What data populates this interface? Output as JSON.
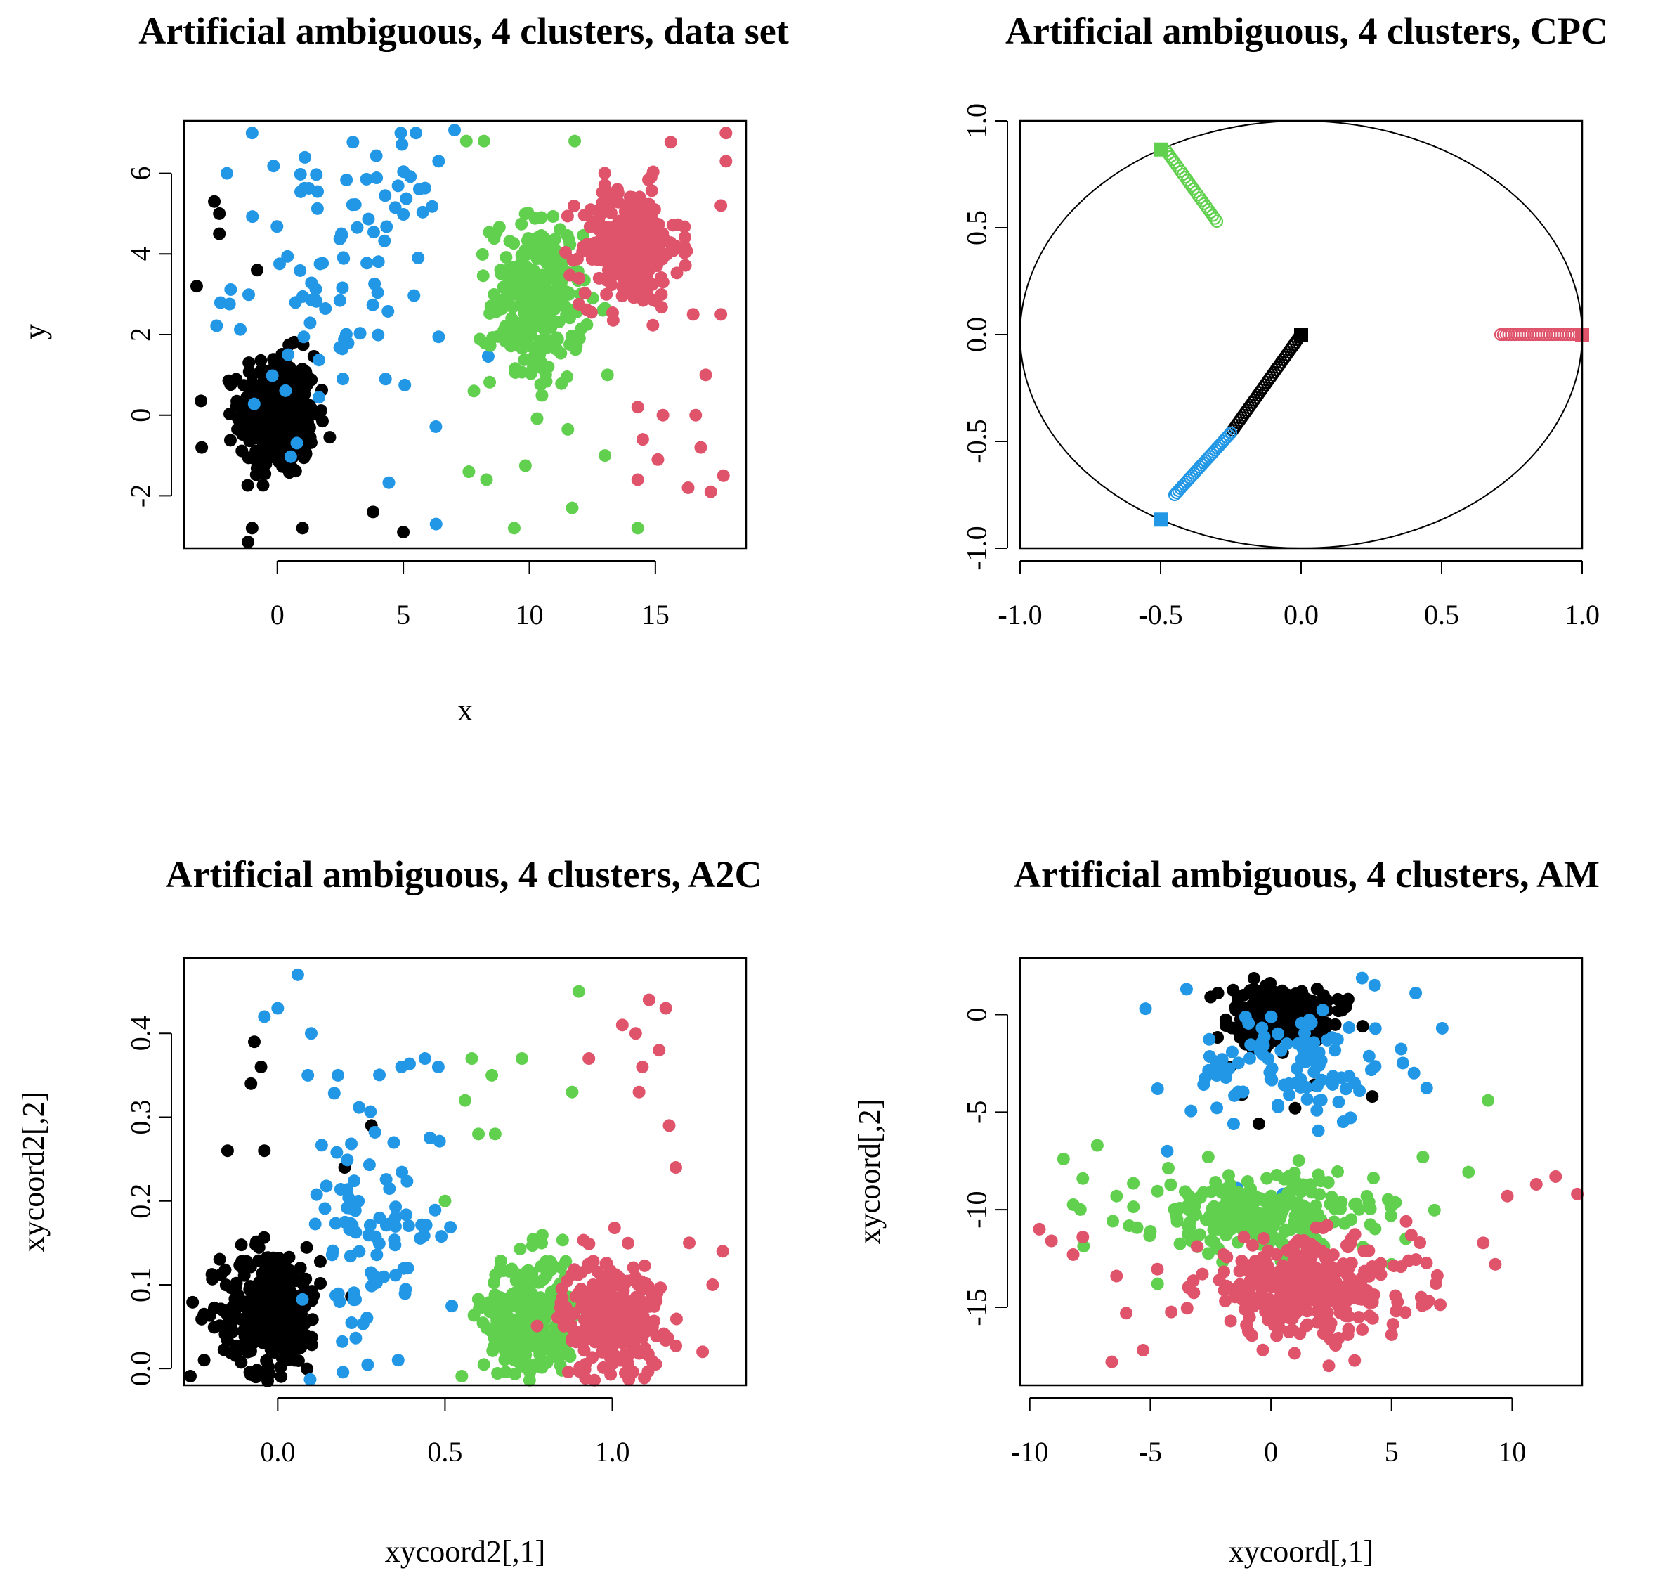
{
  "colors": {
    "black": "#000000",
    "red": "#DF536B",
    "green": "#61D04F",
    "blue": "#2297E6"
  },
  "chart_data": [
    {
      "type": "scatter",
      "title": "Artificial ambiguous, 4 clusters, data set",
      "xlabel": "x",
      "ylabel": "y",
      "xlim": [
        -3.7,
        18.6
      ],
      "ylim": [
        -3.3,
        7.3
      ],
      "xticks": [
        0,
        5,
        10,
        15
      ],
      "xtick_labels": [
        "0",
        "5",
        "10",
        "15"
      ],
      "yticks": [
        -2,
        0,
        2,
        4,
        6
      ],
      "ytick_labels": [
        "-2",
        "0",
        "2",
        "4",
        "6"
      ],
      "grid": false,
      "legend": "none",
      "series": [
        {
          "name": "black",
          "color": "black",
          "n": 360,
          "center": [
            0,
            0
          ],
          "spread": [
            1.0,
            1.0
          ],
          "extra_points": [
            [
              -3.2,
              3.2
            ],
            [
              -2.5,
              5.3
            ],
            [
              -2.3,
              4.5
            ],
            [
              -2.3,
              5.0
            ],
            [
              -0.8,
              3.6
            ],
            [
              -3.0,
              -0.8
            ],
            [
              -1.0,
              -2.8
            ],
            [
              1.0,
              -2.8
            ],
            [
              3.8,
              -2.4
            ],
            [
              5.0,
              -2.9
            ]
          ]
        },
        {
          "name": "blue",
          "color": "blue",
          "n": 95,
          "center": [
            2.5,
            3.5
          ],
          "spread": [
            2.8,
            2.4
          ],
          "extra_points": [
            [
              -1.0,
              7.0
            ],
            [
              4.9,
              7.0
            ],
            [
              5.5,
              7.0
            ],
            [
              6.4,
              6.3
            ],
            [
              -2.0,
              6.0
            ],
            [
              6.3,
              -2.7
            ],
            [
              2.6,
              0.9
            ]
          ]
        },
        {
          "name": "green",
          "color": "green",
          "n": 260,
          "center": [
            10.3,
            2.8
          ],
          "spread": [
            1.2,
            1.4
          ],
          "extra_points": [
            [
              7.5,
              6.8
            ],
            [
              8.2,
              6.8
            ],
            [
              11.8,
              6.8
            ],
            [
              9.4,
              -2.8
            ],
            [
              11.7,
              -2.3
            ],
            [
              14.3,
              -2.8
            ],
            [
              8.3,
              -1.6
            ],
            [
              7.6,
              -1.4
            ],
            [
              13.0,
              -1.0
            ],
            [
              13.1,
              1.0
            ],
            [
              7.8,
              0.6
            ]
          ]
        },
        {
          "name": "red",
          "color": "red",
          "n": 260,
          "center": [
            14.0,
            4.2
          ],
          "spread": [
            1.3,
            1.0
          ],
          "extra_points": [
            [
              17.8,
              7.0
            ],
            [
              17.8,
              6.3
            ],
            [
              17.6,
              5.2
            ],
            [
              17.6,
              2.5
            ],
            [
              16.5,
              2.5
            ],
            [
              17.0,
              1.0
            ],
            [
              16.6,
              0.0
            ],
            [
              14.3,
              0.2
            ],
            [
              14.5,
              -0.6
            ],
            [
              15.1,
              -1.1
            ],
            [
              14.3,
              -1.6
            ],
            [
              16.3,
              -1.8
            ],
            [
              17.2,
              -1.9
            ],
            [
              17.7,
              -1.5
            ],
            [
              16.8,
              -0.8
            ],
            [
              15.3,
              0.0
            ]
          ]
        }
      ]
    },
    {
      "type": "scatter",
      "title": "Artificial ambiguous, 4 clusters, CPC",
      "xlabel": "",
      "ylabel": "",
      "xlim": [
        -1.0,
        1.0
      ],
      "ylim": [
        -1.0,
        1.0
      ],
      "xticks": [
        -1.0,
        -0.5,
        0.0,
        0.5,
        1.0
      ],
      "xtick_labels": [
        "-1.0",
        "-0.5",
        "0.0",
        "0.5",
        "1.0"
      ],
      "yticks": [
        -1.0,
        -0.5,
        0.0,
        0.5,
        1.0
      ],
      "ytick_labels": [
        "-1.0",
        "-0.5",
        "0.0",
        "0.5",
        "1.0"
      ],
      "grid": false,
      "legend": "none",
      "unit_circle": true,
      "series": [
        {
          "name": "black",
          "color": "black",
          "marker": "open-circle",
          "n": 40,
          "segment_from": [
            0.0,
            0.0
          ],
          "segment_to": [
            -0.25,
            -0.46
          ],
          "anchor": [
            0.0,
            0.0
          ]
        },
        {
          "name": "blue",
          "color": "blue",
          "marker": "open-circle",
          "n": 30,
          "segment_from": [
            -0.25,
            -0.46
          ],
          "segment_to": [
            -0.45,
            -0.75
          ],
          "anchor": [
            -0.5,
            -0.866
          ]
        },
        {
          "name": "green",
          "color": "green",
          "marker": "open-circle",
          "n": 25,
          "segment_from": [
            -0.48,
            0.86
          ],
          "segment_to": [
            -0.3,
            0.53
          ],
          "anchor": [
            -0.5,
            0.866
          ]
        },
        {
          "name": "red",
          "color": "red",
          "marker": "open-circle",
          "n": 30,
          "segment_from": [
            0.71,
            0.0
          ],
          "segment_to": [
            0.99,
            0.0
          ],
          "anchor": [
            1.0,
            0.0
          ]
        }
      ]
    },
    {
      "type": "scatter",
      "title": "Artificial ambiguous, 4 clusters, A2C",
      "xlabel": "xycoord2[,1]",
      "ylabel": "xycoord2[,2]",
      "xlim": [
        -0.28,
        1.4
      ],
      "ylim": [
        -0.02,
        0.49
      ],
      "xticks": [
        0.0,
        0.5,
        1.0
      ],
      "xtick_labels": [
        "0.0",
        "0.5",
        "1.0"
      ],
      "yticks": [
        0.0,
        0.1,
        0.2,
        0.3,
        0.4
      ],
      "ytick_labels": [
        "0.0",
        "0.1",
        "0.2",
        "0.3",
        "0.4"
      ],
      "grid": false,
      "legend": "none",
      "series": [
        {
          "name": "black",
          "color": "black",
          "n": 300,
          "center": [
            -0.02,
            0.07
          ],
          "spread": [
            0.1,
            0.05
          ],
          "extra_points": [
            [
              -0.07,
              0.39
            ],
            [
              -0.05,
              0.36
            ],
            [
              -0.08,
              0.34
            ],
            [
              -0.15,
              0.26
            ],
            [
              -0.04,
              0.26
            ],
            [
              0.28,
              0.29
            ],
            [
              0.2,
              0.24
            ],
            [
              -0.22,
              0.01
            ]
          ]
        },
        {
          "name": "blue",
          "color": "blue",
          "n": 90,
          "center": [
            0.28,
            0.17
          ],
          "spread": [
            0.14,
            0.1
          ],
          "extra_points": [
            [
              0.06,
              0.47
            ],
            [
              0.0,
              0.43
            ],
            [
              -0.04,
              0.42
            ],
            [
              0.1,
              0.4
            ],
            [
              0.09,
              0.35
            ],
            [
              0.18,
              0.35
            ],
            [
              0.44,
              0.37
            ],
            [
              0.48,
              0.36
            ],
            [
              0.37,
              0.36
            ],
            [
              0.36,
              0.01
            ]
          ]
        },
        {
          "name": "green",
          "color": "green",
          "n": 260,
          "center": [
            0.75,
            0.06
          ],
          "spread": [
            0.09,
            0.05
          ],
          "extra_points": [
            [
              0.9,
              0.45
            ],
            [
              0.58,
              0.37
            ],
            [
              0.73,
              0.37
            ],
            [
              0.64,
              0.35
            ],
            [
              0.56,
              0.32
            ],
            [
              0.88,
              0.33
            ],
            [
              0.6,
              0.28
            ],
            [
              0.65,
              0.28
            ],
            [
              0.5,
              0.2
            ]
          ]
        },
        {
          "name": "red",
          "color": "red",
          "n": 260,
          "center": [
            1.0,
            0.06
          ],
          "spread": [
            0.1,
            0.05
          ],
          "extra_points": [
            [
              1.11,
              0.44
            ],
            [
              1.16,
              0.43
            ],
            [
              1.03,
              0.41
            ],
            [
              1.07,
              0.4
            ],
            [
              1.14,
              0.38
            ],
            [
              1.09,
              0.36
            ],
            [
              0.93,
              0.37
            ],
            [
              1.08,
              0.33
            ],
            [
              1.17,
              0.29
            ],
            [
              1.19,
              0.24
            ],
            [
              1.33,
              0.14
            ],
            [
              1.27,
              0.02
            ],
            [
              1.3,
              0.1
            ],
            [
              1.23,
              0.15
            ]
          ]
        }
      ]
    },
    {
      "type": "scatter",
      "title": "Artificial ambiguous, 4 clusters, AM",
      "xlabel": "xycoord[,1]",
      "ylabel": "xycoord[,2]",
      "xlim": [
        -10.4,
        12.9
      ],
      "ylim": [
        -19.0,
        2.9
      ],
      "xticks": [
        -10,
        -5,
        0,
        5,
        10
      ],
      "xtick_labels": [
        "-10",
        "-5",
        "0",
        "5",
        "10"
      ],
      "yticks": [
        -15,
        -10,
        -5,
        0
      ],
      "ytick_labels": [
        "-15",
        "-10",
        "-5",
        "0"
      ],
      "grid": false,
      "legend": "none",
      "series": [
        {
          "name": "black",
          "color": "black",
          "n": 320,
          "center": [
            0.4,
            0.0
          ],
          "spread": [
            1.3,
            0.9
          ],
          "extra_points": [
            [
              -2.2,
              1.1
            ],
            [
              -2.5,
              0.9
            ],
            [
              -0.5,
              -5.6
            ],
            [
              -1.2,
              -4.1
            ],
            [
              1.0,
              -4.8
            ],
            [
              1.8,
              -3.6
            ],
            [
              4.2,
              -4.2
            ],
            [
              3.8,
              -0.6
            ],
            [
              -1.7,
              -2.7
            ]
          ]
        },
        {
          "name": "blue",
          "color": "blue",
          "n": 100,
          "center": [
            1.0,
            -2.5
          ],
          "spread": [
            2.8,
            2.0
          ],
          "extra_points": [
            [
              -5.2,
              0.3
            ],
            [
              -3.5,
              1.3
            ],
            [
              4.3,
              1.5
            ],
            [
              6.0,
              1.1
            ],
            [
              7.1,
              -0.7
            ],
            [
              -4.7,
              -3.8
            ],
            [
              -4.3,
              -7.0
            ],
            [
              -1.4,
              -8.9
            ],
            [
              0.5,
              -9.2
            ]
          ]
        },
        {
          "name": "green",
          "color": "green",
          "n": 260,
          "center": [
            -0.5,
            -10.2
          ],
          "spread": [
            3.2,
            1.3
          ],
          "extra_points": [
            [
              -8.6,
              -7.4
            ],
            [
              -7.2,
              -6.7
            ],
            [
              -7.8,
              -8.4
            ],
            [
              -2.6,
              -7.3
            ],
            [
              6.3,
              -7.3
            ],
            [
              9.0,
              -4.4
            ],
            [
              -6.4,
              -9.3
            ],
            [
              -4.7,
              -13.8
            ],
            [
              0.6,
              -14.0
            ],
            [
              5.0,
              -12.8
            ]
          ]
        },
        {
          "name": "red",
          "color": "red",
          "n": 320,
          "center": [
            1.5,
            -14.0
          ],
          "spread": [
            3.0,
            1.6
          ],
          "extra_points": [
            [
              -9.6,
              -11.0
            ],
            [
              -9.1,
              -11.6
            ],
            [
              -8.2,
              -12.3
            ],
            [
              -7.8,
              -11.4
            ],
            [
              -6.4,
              -13.4
            ],
            [
              -6.6,
              -17.8
            ],
            [
              -5.3,
              -17.2
            ],
            [
              -6.0,
              -15.3
            ],
            [
              2.4,
              -18.0
            ],
            [
              3.2,
              -18.8
            ],
            [
              9.8,
              -9.3
            ],
            [
              11.8,
              -8.3
            ],
            [
              12.7,
              -9.2
            ],
            [
              11.0,
              -8.7
            ],
            [
              8.8,
              -11.7
            ],
            [
              9.3,
              -12.8
            ]
          ]
        }
      ]
    }
  ]
}
